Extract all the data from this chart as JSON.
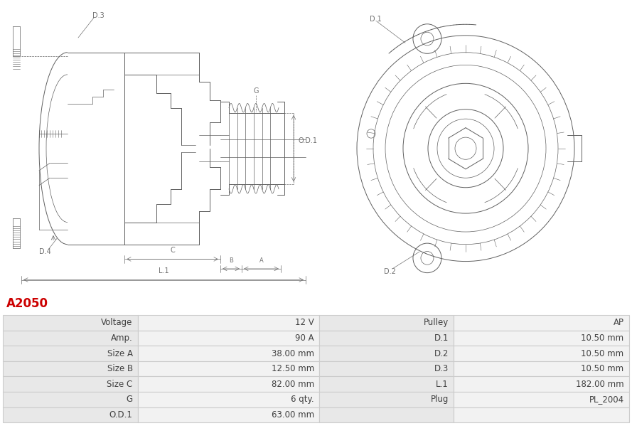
{
  "title": "A2050",
  "title_color": "#cc0000",
  "title_fontsize": 12,
  "bg_color": "#ffffff",
  "table_row_bg1": "#e8e8e8",
  "table_row_bg2": "#f2f2f2",
  "table_border_color": "#cccccc",
  "table_data": [
    [
      "Voltage",
      "12 V",
      "Pulley",
      "AP"
    ],
    [
      "Amp.",
      "90 A",
      "D.1",
      "10.50 mm"
    ],
    [
      "Size A",
      "38.00 mm",
      "D.2",
      "10.50 mm"
    ],
    [
      "Size B",
      "12.50 mm",
      "D.3",
      "10.50 mm"
    ],
    [
      "Size C",
      "82.00 mm",
      "L.1",
      "182.00 mm"
    ],
    [
      "G",
      "6 qty.",
      "Plug",
      "PL_2004"
    ],
    [
      "O.D.1",
      "63.00 mm",
      "",
      ""
    ]
  ],
  "diagram_color": "#606060",
  "dim_color": "#707070",
  "label_fontsize": 7,
  "dim_fontsize": 7
}
